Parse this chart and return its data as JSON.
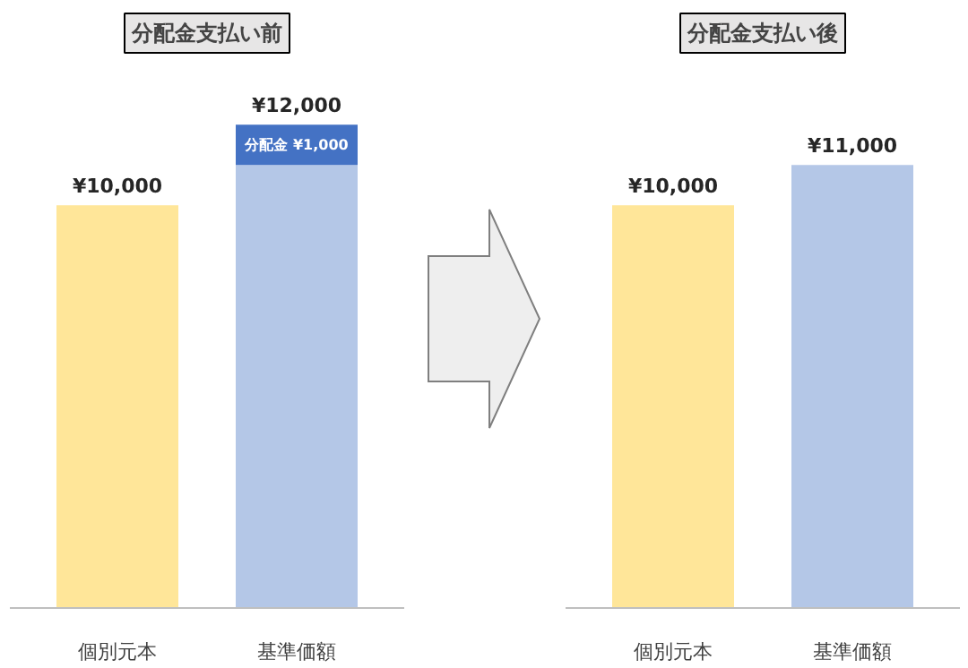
{
  "chart_data": [
    {
      "type": "bar",
      "title": "分配金支払い前",
      "categories": [
        "個別元本",
        "基準価額"
      ],
      "stacked": true,
      "series": [
        {
          "colors": [
            "#ffe699",
            "#b4c7e7"
          ],
          "values": [
            10000,
            11000
          ]
        },
        {
          "color": "#4472c4",
          "values": [
            null,
            1000
          ],
          "value_labels": [
            null,
            "分配金 ¥1,000"
          ]
        }
      ],
      "totals": [
        "¥10,000",
        "¥12,000"
      ]
    },
    {
      "type": "bar",
      "title": "分配金支払い後",
      "categories": [
        "個別元本",
        "基準価額"
      ],
      "series": [
        {
          "colors": [
            "#ffe699",
            "#b4c7e7"
          ],
          "values": [
            10000,
            11000
          ],
          "value_labels": [
            "¥10,000",
            "¥11,000"
          ]
        }
      ]
    }
  ]
}
